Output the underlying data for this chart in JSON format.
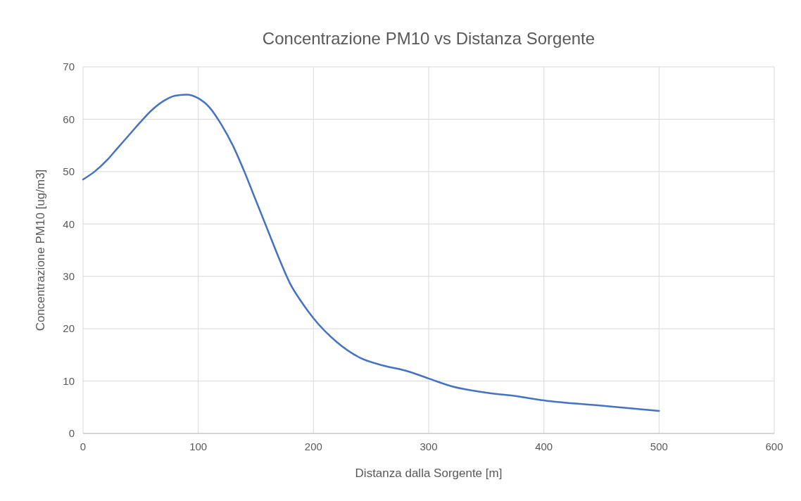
{
  "chart_data": {
    "type": "line",
    "title": "Concentrazione PM10 vs Distanza Sorgente",
    "xlabel": "Distanza dalla Sorgente [m]",
    "ylabel": "Concentrazione PM10 [ug/m3]",
    "x": [
      0,
      10,
      20,
      30,
      40,
      50,
      60,
      70,
      80,
      90,
      100,
      110,
      120,
      130,
      140,
      150,
      160,
      170,
      180,
      190,
      200,
      220,
      240,
      260,
      280,
      300,
      320,
      350,
      380,
      400,
      450,
      500
    ],
    "series": [
      {
        "color": "#4472c4",
        "values": [
          48.5,
          50,
          52,
          54.5,
          57,
          59.5,
          61.8,
          63.5,
          64.5,
          64.7,
          64,
          62.2,
          59,
          55,
          50,
          44.5,
          39,
          33.5,
          28.5,
          25,
          22,
          17.5,
          14.5,
          13,
          12,
          10.5,
          9,
          7.8,
          7,
          6.3,
          5.3,
          4.3
        ]
      }
    ],
    "xlim": [
      0,
      600
    ],
    "xticks": [
      0,
      100,
      200,
      300,
      400,
      500,
      600
    ],
    "ylim": [
      0,
      70
    ],
    "yticks": [
      0,
      10,
      20,
      30,
      40,
      50,
      60,
      70
    ],
    "grid": true,
    "marker": "none",
    "line_style": "solid"
  }
}
